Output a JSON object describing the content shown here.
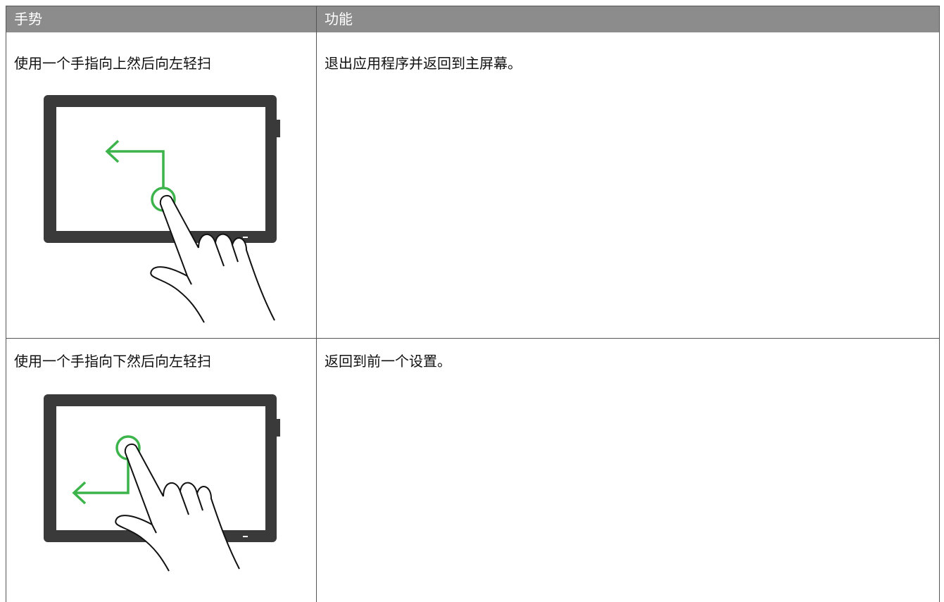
{
  "table": {
    "header": [
      "手势",
      "功能"
    ],
    "rows": [
      [
        "使用一个手指向上然后向左轻扫",
        "退出应用程序并返回到主屏幕。"
      ],
      [
        "使用一个手指向下然后向左轻扫",
        "返回到前一个设置。"
      ]
    ]
  }
}
